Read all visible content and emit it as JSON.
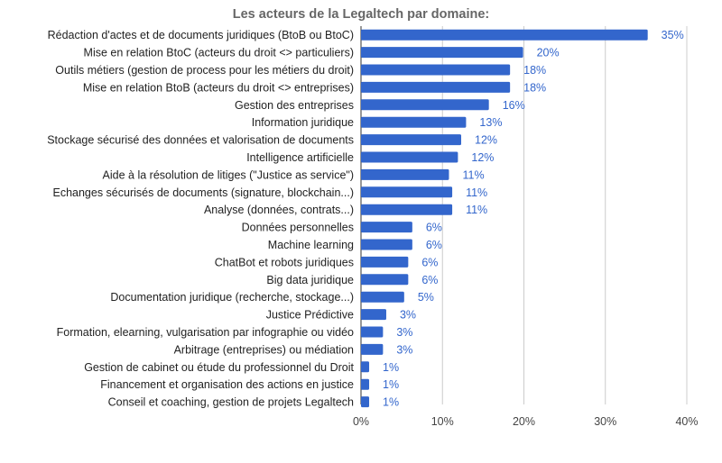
{
  "chart_data": {
    "type": "bar",
    "orientation": "horizontal",
    "title": "Les acteurs de la Legaltech par domaine:",
    "xlabel": "",
    "ylabel": "",
    "xlim": [
      0,
      0.4
    ],
    "x_ticks": [
      {
        "value": 0,
        "label": "0%"
      },
      {
        "value": 0.1,
        "label": "10%"
      },
      {
        "value": 0.2,
        "label": "20%"
      },
      {
        "value": 0.3,
        "label": "30%"
      },
      {
        "value": 0.4,
        "label": "40%"
      }
    ],
    "grid": true,
    "legend": "none",
    "bar_color": "#3366cc",
    "label_color": "#3366cc",
    "categories": [
      "Rédaction d'actes et de documents juridiques (BtoB ou BtoC)",
      "Mise en relation BtoC (acteurs du  droit <> particuliers)",
      "Outils métiers (gestion de process pour les métiers du droit)",
      "Mise en relation BtoB (acteurs du  droit <> entreprises)",
      "Gestion des entreprises",
      "Information juridique",
      "Stockage sécurisé des données et valorisation de documents",
      "Intelligence artificielle",
      "Aide à la résolution de litiges (\"Justice as service\")",
      "Echanges sécurisés de documents (signature, blockchain...)",
      "Analyse (données, contrats...)",
      "Données personnelles",
      "Machine learning",
      "ChatBot et robots juridiques",
      "Big data juridique",
      "Documentation juridique (recherche, stockage...)",
      "Justice Prédictive",
      "Formation, elearning, vulgarisation par infographie ou vidéo",
      "Arbitrage (entreprises) ou médiation",
      "Gestion de cabinet ou étude du professionnel du Droit",
      "Financement et organisation des actions en justice",
      "Conseil et coaching, gestion de projets Legaltech"
    ],
    "values": [
      0.352,
      0.199,
      0.183,
      0.183,
      0.157,
      0.129,
      0.123,
      0.119,
      0.108,
      0.112,
      0.112,
      0.063,
      0.063,
      0.058,
      0.058,
      0.053,
      0.031,
      0.027,
      0.027,
      0.01,
      0.01,
      0.01
    ],
    "data_labels": [
      "35%",
      "20%",
      "18%",
      "18%",
      "16%",
      "13%",
      "12%",
      "12%",
      "11%",
      "11%",
      "11%",
      "6%",
      "6%",
      "6%",
      "6%",
      "5%",
      "3%",
      "3%",
      "3%",
      "1%",
      "1%",
      "1%"
    ]
  }
}
